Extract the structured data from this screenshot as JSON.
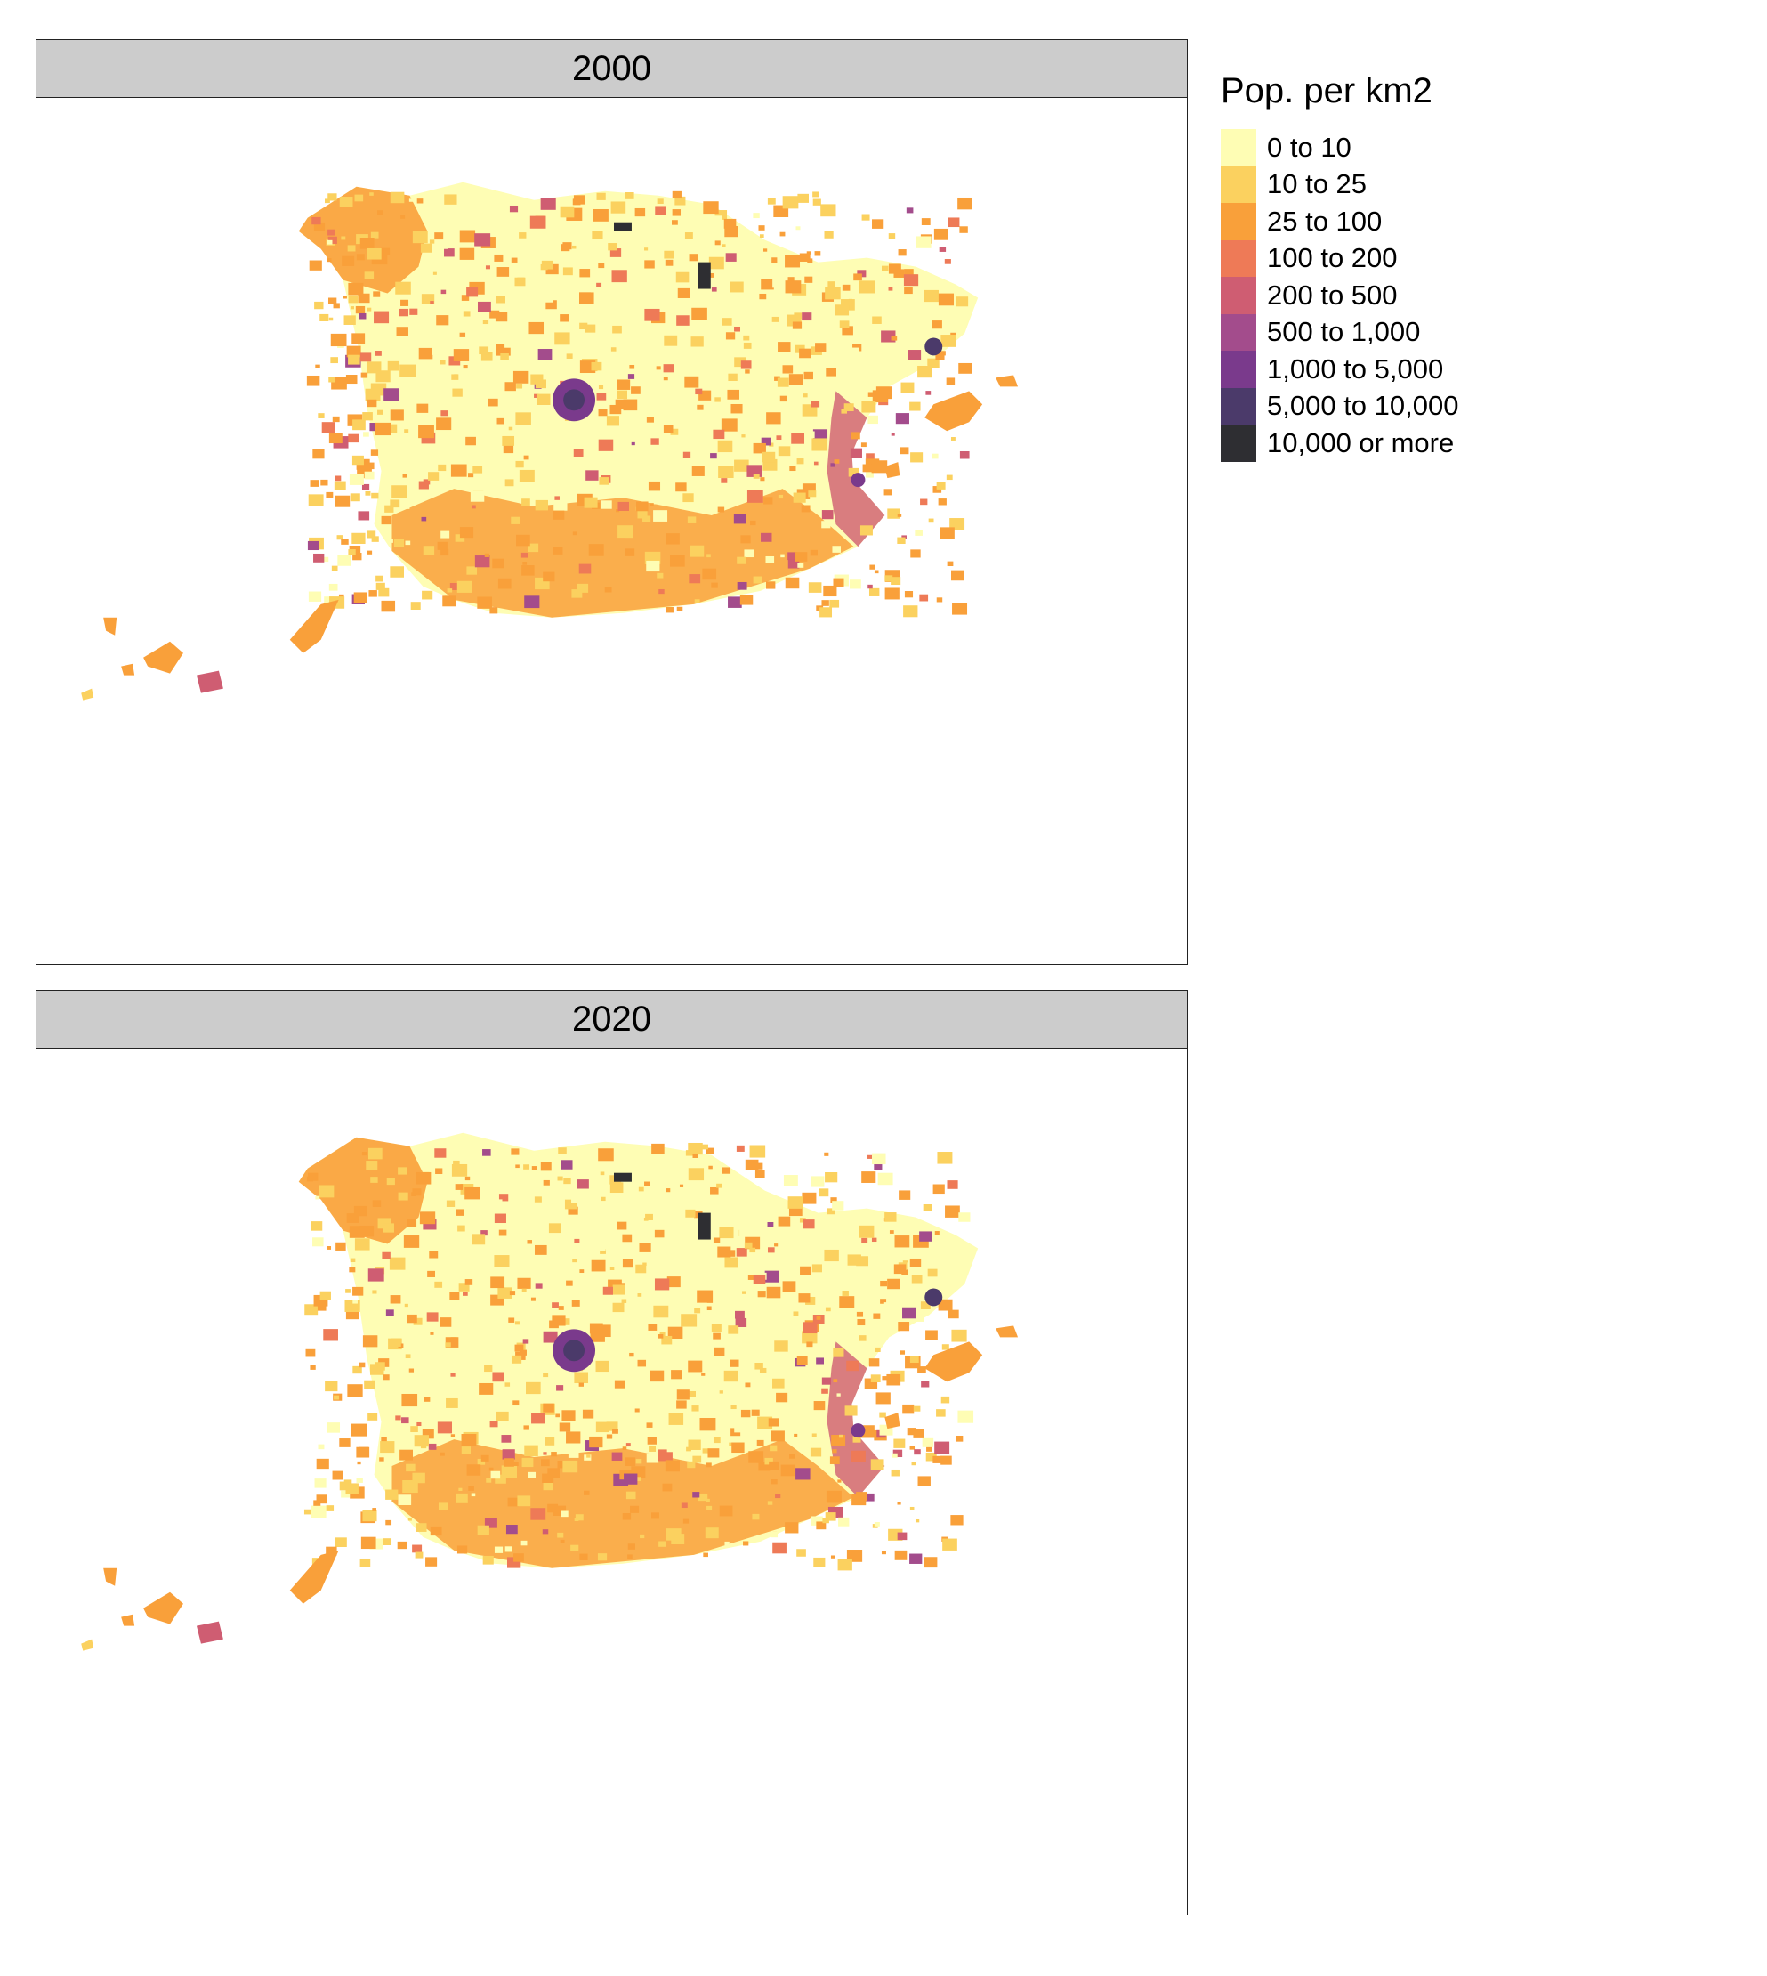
{
  "panels": [
    {
      "title": "2000"
    },
    {
      "title": "2020"
    }
  ],
  "legend": {
    "title": "Pop. per km2",
    "classes": [
      {
        "label": "0 to 10",
        "color": "#fefdb4"
      },
      {
        "label": "10 to 25",
        "color": "#fbd15f"
      },
      {
        "label": "25 to 100",
        "color": "#f9a03a"
      },
      {
        "label": "100 to 200",
        "color": "#ee7a57"
      },
      {
        "label": "200 to 500",
        "color": "#cf5d72"
      },
      {
        "label": "500 to 1,000",
        "color": "#a34c8c"
      },
      {
        "label": "1,000 to 5,000",
        "color": "#7a3a8c"
      },
      {
        "label": "5,000 to 10,000",
        "color": "#4b3a6a"
      },
      {
        "label": "10,000 or more",
        "color": "#2e2e32"
      }
    ]
  }
}
